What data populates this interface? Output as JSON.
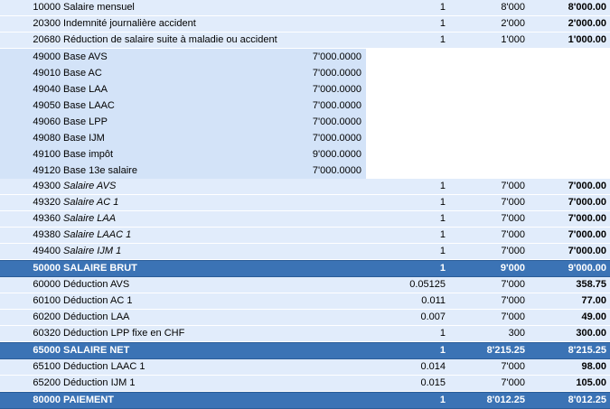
{
  "rows": [
    {
      "type": "normal",
      "code": "10000",
      "label": "Salaire mensuel",
      "base": "",
      "rate": "1",
      "qty": "8'000",
      "amount": "8'000.00"
    },
    {
      "type": "normal",
      "code": "20300",
      "label": "Indemnité journalière accident",
      "base": "",
      "rate": "1",
      "qty": "2'000",
      "amount": "2'000.00"
    },
    {
      "type": "normal",
      "code": "20680",
      "label": "Réduction de salaire suite à maladie ou accident",
      "base": "",
      "rate": "1",
      "qty": "1'000",
      "amount": "1'000.00"
    },
    {
      "type": "base",
      "code": "49000",
      "label": "Base AVS",
      "base": "7'000.0000",
      "rate": "",
      "qty": "",
      "amount": ""
    },
    {
      "type": "base",
      "code": "49010",
      "label": "Base AC",
      "base": "7'000.0000",
      "rate": "",
      "qty": "",
      "amount": ""
    },
    {
      "type": "base",
      "code": "49040",
      "label": "Base LAA",
      "base": "7'000.0000",
      "rate": "",
      "qty": "",
      "amount": ""
    },
    {
      "type": "base",
      "code": "49050",
      "label": "Base LAAC",
      "base": "7'000.0000",
      "rate": "",
      "qty": "",
      "amount": ""
    },
    {
      "type": "base",
      "code": "49060",
      "label": "Base LPP",
      "base": "7'000.0000",
      "rate": "",
      "qty": "",
      "amount": ""
    },
    {
      "type": "base",
      "code": "49080",
      "label": "Base IJM",
      "base": "7'000.0000",
      "rate": "",
      "qty": "",
      "amount": ""
    },
    {
      "type": "base",
      "code": "49100",
      "label": "Base impôt",
      "base": "9'000.0000",
      "rate": "",
      "qty": "",
      "amount": ""
    },
    {
      "type": "base",
      "code": "49120",
      "label": "Base 13e salaire",
      "base": "7'000.0000",
      "rate": "",
      "qty": "",
      "amount": ""
    },
    {
      "type": "normal",
      "italic": true,
      "code": "49300",
      "label": "Salaire AVS",
      "base": "",
      "rate": "1",
      "qty": "7'000",
      "amount": "7'000.00"
    },
    {
      "type": "normal",
      "italic": true,
      "code": "49320",
      "label": "Salaire AC 1",
      "base": "",
      "rate": "1",
      "qty": "7'000",
      "amount": "7'000.00"
    },
    {
      "type": "normal",
      "italic": true,
      "code": "49360",
      "label": "Salaire LAA",
      "base": "",
      "rate": "1",
      "qty": "7'000",
      "amount": "7'000.00"
    },
    {
      "type": "normal",
      "italic": true,
      "code": "49380",
      "label": "Salaire LAAC 1",
      "base": "",
      "rate": "1",
      "qty": "7'000",
      "amount": "7'000.00"
    },
    {
      "type": "normal",
      "italic": true,
      "code": "49400",
      "label": "Salaire IJM 1",
      "base": "",
      "rate": "1",
      "qty": "7'000",
      "amount": "7'000.00"
    },
    {
      "type": "total",
      "code": "50000",
      "label": "SALAIRE BRUT",
      "base": "",
      "rate": "1",
      "qty": "9'000",
      "amount": "9'000.00"
    },
    {
      "type": "normal",
      "code": "60000",
      "label": "Déduction AVS",
      "base": "",
      "rate": "0.05125",
      "qty": "7'000",
      "amount": "358.75"
    },
    {
      "type": "normal",
      "code": "60100",
      "label": "Déduction AC 1",
      "base": "",
      "rate": "0.011",
      "qty": "7'000",
      "amount": "77.00"
    },
    {
      "type": "normal",
      "code": "60200",
      "label": "Déduction LAA",
      "base": "",
      "rate": "0.007",
      "qty": "7'000",
      "amount": "49.00"
    },
    {
      "type": "normal",
      "code": "60320",
      "label": "Déduction LPP fixe en CHF",
      "base": "",
      "rate": "1",
      "qty": "300",
      "amount": "300.00"
    },
    {
      "type": "total",
      "code": "65000",
      "label": "SALAIRE NET",
      "base": "",
      "rate": "1",
      "qty": "8'215.25",
      "amount": "8'215.25"
    },
    {
      "type": "normal",
      "code": "65100",
      "label": "Déduction LAAC 1",
      "base": "",
      "rate": "0.014",
      "qty": "7'000",
      "amount": "98.00"
    },
    {
      "type": "normal",
      "code": "65200",
      "label": "Déduction IJM 1",
      "base": "",
      "rate": "0.015",
      "qty": "7'000",
      "amount": "105.00"
    },
    {
      "type": "total",
      "code": "80000",
      "label": "PAIEMENT",
      "base": "",
      "rate": "1",
      "qty": "8'012.25",
      "amount": "8'012.25"
    }
  ]
}
